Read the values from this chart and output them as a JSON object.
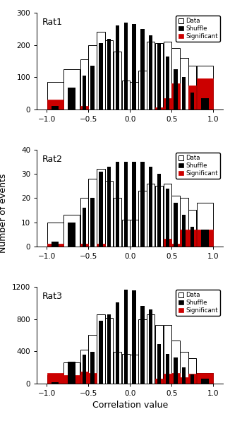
{
  "rats": [
    {
      "label": "Rat1",
      "ylim": [
        0,
        300
      ],
      "yticks": [
        0,
        100,
        200,
        300
      ],
      "data": [
        85,
        125,
        155,
        200,
        240,
        215,
        180,
        90,
        85,
        120,
        210,
        205,
        210,
        190,
        160,
        135,
        135
      ],
      "shuffle": [
        10,
        68,
        105,
        135,
        205,
        220,
        260,
        270,
        265,
        250,
        230,
        205,
        165,
        125,
        100,
        52,
        35
      ],
      "sig": [
        30,
        0,
        10,
        0,
        0,
        0,
        0,
        0,
        0,
        0,
        0,
        5,
        35,
        80,
        0,
        75,
        95
      ]
    },
    {
      "label": "Rat2",
      "ylim": [
        0,
        40
      ],
      "yticks": [
        0,
        10,
        20,
        30,
        40
      ],
      "data": [
        10,
        13,
        20,
        28,
        32,
        27,
        20,
        11,
        11,
        23,
        26,
        25,
        26,
        21,
        20,
        15,
        18
      ],
      "shuffle": [
        2,
        10,
        16,
        20,
        31,
        33,
        35,
        35,
        35,
        35,
        33,
        30,
        24,
        18,
        13,
        8,
        7
      ],
      "sig": [
        1,
        0,
        1,
        0,
        1,
        0,
        0,
        0,
        0,
        0,
        0,
        0,
        3,
        1,
        7,
        7,
        7
      ]
    },
    {
      "label": "Rat3",
      "ylim": [
        0,
        1200
      ],
      "yticks": [
        0,
        400,
        800,
        1200
      ],
      "data": [
        100,
        260,
        420,
        600,
        860,
        810,
        390,
        370,
        360,
        800,
        860,
        730,
        730,
        530,
        390,
        310,
        130
      ],
      "shuffle": [
        15,
        270,
        360,
        390,
        780,
        860,
        1010,
        1165,
        1155,
        960,
        920,
        490,
        370,
        320,
        195,
        110,
        60
      ],
      "sig": [
        130,
        100,
        150,
        130,
        0,
        0,
        0,
        0,
        0,
        0,
        0,
        60,
        120,
        130,
        80,
        120,
        130
      ]
    }
  ],
  "bins": [
    -1.0,
    -0.8,
    -0.6,
    -0.5,
    -0.4,
    -0.3,
    -0.2,
    -0.1,
    0.0,
    0.1,
    0.2,
    0.3,
    0.4,
    0.5,
    0.6,
    0.7,
    0.8,
    1.0
  ],
  "xlabel": "Correlation value",
  "ylabel": "Number of events",
  "data_color": "white",
  "shuffle_color": "black",
  "sig_color": "#cc0000"
}
